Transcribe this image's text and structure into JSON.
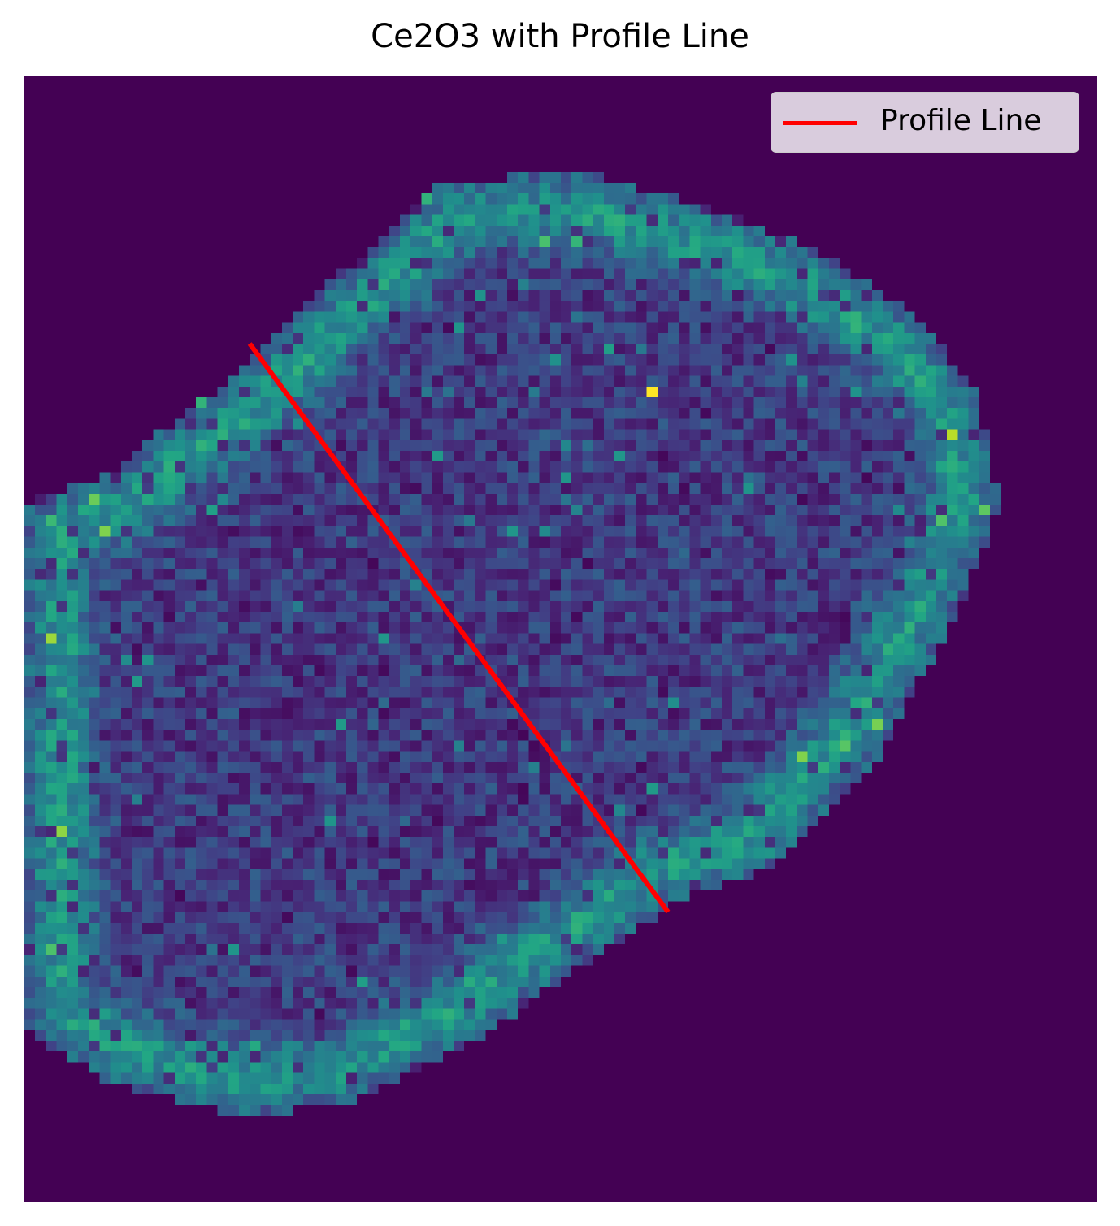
{
  "chart_data": {
    "type": "heatmap",
    "title": "Ce2O3 with Profile Line",
    "colormap": "viridis",
    "axes_visible": false,
    "image_grid": [
      100,
      105
    ],
    "profile_line": {
      "start": [
        21,
        25
      ],
      "end": [
        60,
        78
      ],
      "color": "#ff0000"
    },
    "legend": {
      "position": "top-right",
      "entries": [
        {
          "label": "Profile Line",
          "color": "#ff0000"
        }
      ]
    },
    "background_color": "#440154"
  }
}
